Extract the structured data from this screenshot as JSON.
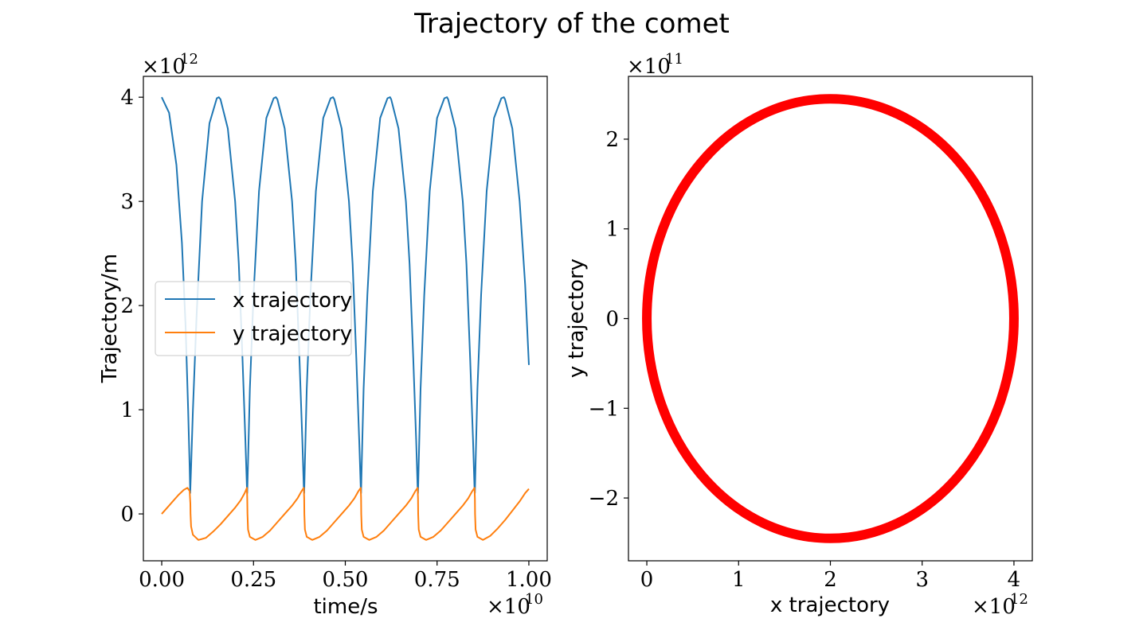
{
  "figure": {
    "title": "Trajectory of the comet"
  },
  "chart_data": [
    {
      "type": "line",
      "xlabel": "time/s",
      "ylabel": "Trajectory/m",
      "x_multiplier": "×10",
      "x_multiplier_exp": "10",
      "y_multiplier": "×10",
      "y_multiplier_exp": "12",
      "xlim": [
        -0.05,
        1.05
      ],
      "ylim": [
        -0.45,
        4.2
      ],
      "x_ticks": [
        0.0,
        0.25,
        0.5,
        0.75,
        1.0
      ],
      "x_tick_labels": [
        "0.00",
        "0.25",
        "0.50",
        "0.75",
        "1.00"
      ],
      "y_ticks": [
        0,
        1,
        2,
        3,
        4
      ],
      "y_tick_labels": [
        "0",
        "1",
        "2",
        "3",
        "4"
      ],
      "legend": "center-left",
      "grid": false,
      "series": [
        {
          "name": "x trajectory",
          "color": "#1f77b4",
          "x": [
            0.0,
            0.02,
            0.04,
            0.055,
            0.065,
            0.072,
            0.076,
            0.0775,
            0.08,
            0.085,
            0.095,
            0.11,
            0.13,
            0.15,
            0.1555,
            0.16,
            0.18,
            0.2,
            0.21,
            0.22,
            0.228,
            0.232,
            0.233,
            0.235,
            0.24,
            0.25,
            0.265,
            0.285,
            0.305,
            0.311,
            0.315,
            0.335,
            0.355,
            0.365,
            0.375,
            0.383,
            0.387,
            0.388,
            0.39,
            0.395,
            0.405,
            0.42,
            0.44,
            0.46,
            0.4665,
            0.47,
            0.49,
            0.51,
            0.52,
            0.53,
            0.538,
            0.542,
            0.543,
            0.545,
            0.55,
            0.56,
            0.575,
            0.595,
            0.615,
            0.622,
            0.625,
            0.645,
            0.665,
            0.675,
            0.685,
            0.693,
            0.697,
            0.698,
            0.7,
            0.705,
            0.715,
            0.73,
            0.75,
            0.77,
            0.777,
            0.78,
            0.8,
            0.82,
            0.83,
            0.84,
            0.848,
            0.852,
            0.853,
            0.855,
            0.86,
            0.87,
            0.885,
            0.905,
            0.925,
            0.932,
            0.935,
            0.955,
            0.975,
            0.99,
            1.0
          ],
          "y": [
            4.0,
            3.85,
            3.35,
            2.6,
            1.8,
            1.0,
            0.45,
            0.2,
            0.45,
            1.0,
            1.9,
            3.0,
            3.75,
            3.99,
            4.0,
            3.98,
            3.7,
            3.0,
            2.4,
            1.5,
            0.7,
            0.25,
            0.2,
            0.5,
            1.2,
            2.1,
            3.1,
            3.8,
            3.99,
            4.0,
            3.98,
            3.7,
            3.0,
            2.4,
            1.5,
            0.7,
            0.25,
            0.2,
            0.5,
            1.2,
            2.1,
            3.1,
            3.8,
            3.99,
            4.0,
            3.98,
            3.7,
            3.0,
            2.4,
            1.5,
            0.7,
            0.25,
            0.2,
            0.5,
            1.2,
            2.1,
            3.1,
            3.8,
            3.99,
            4.0,
            3.98,
            3.7,
            3.0,
            2.4,
            1.5,
            0.7,
            0.25,
            0.2,
            0.5,
            1.2,
            2.1,
            3.1,
            3.8,
            3.99,
            4.0,
            3.98,
            3.7,
            3.0,
            2.4,
            1.5,
            0.7,
            0.25,
            0.2,
            0.5,
            1.2,
            2.1,
            3.1,
            3.8,
            3.99,
            4.0,
            3.98,
            3.7,
            3.0,
            2.2,
            1.43
          ]
        },
        {
          "name": "y trajectory",
          "color": "#ff7f0e",
          "x": [
            0.0,
            0.015,
            0.03,
            0.045,
            0.06,
            0.07,
            0.076,
            0.078,
            0.0785,
            0.08,
            0.085,
            0.1,
            0.12,
            0.14,
            0.16,
            0.18,
            0.2,
            0.215,
            0.226,
            0.232,
            0.233,
            0.2335,
            0.235,
            0.24,
            0.255,
            0.275,
            0.295,
            0.315,
            0.335,
            0.355,
            0.37,
            0.381,
            0.387,
            0.388,
            0.3885,
            0.39,
            0.395,
            0.41,
            0.43,
            0.45,
            0.47,
            0.49,
            0.51,
            0.525,
            0.536,
            0.542,
            0.543,
            0.5435,
            0.545,
            0.55,
            0.565,
            0.585,
            0.605,
            0.625,
            0.645,
            0.665,
            0.68,
            0.691,
            0.697,
            0.698,
            0.6985,
            0.7,
            0.705,
            0.72,
            0.74,
            0.76,
            0.78,
            0.8,
            0.82,
            0.835,
            0.846,
            0.852,
            0.853,
            0.8535,
            0.855,
            0.86,
            0.875,
            0.895,
            0.915,
            0.935,
            0.955,
            0.975,
            0.99,
            1.0
          ],
          "y": [
            0.0,
            0.06,
            0.12,
            0.18,
            0.23,
            0.25,
            0.22,
            0.1,
            0.0,
            -0.12,
            -0.2,
            -0.25,
            -0.23,
            -0.17,
            -0.1,
            -0.02,
            0.06,
            0.13,
            0.2,
            0.25,
            0.15,
            0.0,
            -0.15,
            -0.22,
            -0.25,
            -0.22,
            -0.16,
            -0.08,
            0.0,
            0.08,
            0.15,
            0.22,
            0.25,
            0.15,
            0.0,
            -0.15,
            -0.22,
            -0.25,
            -0.22,
            -0.16,
            -0.08,
            0.0,
            0.08,
            0.15,
            0.22,
            0.25,
            0.15,
            0.0,
            -0.15,
            -0.22,
            -0.25,
            -0.22,
            -0.16,
            -0.08,
            0.0,
            0.08,
            0.15,
            0.22,
            0.25,
            0.15,
            0.0,
            -0.15,
            -0.22,
            -0.25,
            -0.22,
            -0.16,
            -0.08,
            0.0,
            0.08,
            0.15,
            0.22,
            0.25,
            0.15,
            0.0,
            -0.15,
            -0.22,
            -0.25,
            -0.21,
            -0.14,
            -0.06,
            0.03,
            0.12,
            0.2,
            0.24
          ]
        }
      ]
    },
    {
      "type": "scatter",
      "xlabel": "x trajectory",
      "ylabel": "y trajectory",
      "x_multiplier": "×10",
      "x_multiplier_exp": "12",
      "y_multiplier": "×10",
      "y_multiplier_exp": "11",
      "xlim": [
        -0.2,
        4.2
      ],
      "ylim": [
        -2.7,
        2.7
      ],
      "x_ticks": [
        0,
        1,
        2,
        3,
        4
      ],
      "x_tick_labels": [
        "0",
        "1",
        "2",
        "3",
        "4"
      ],
      "y_ticks": [
        -2,
        -1,
        0,
        1,
        2
      ],
      "y_tick_labels": [
        "−2",
        "−1",
        "0",
        "1",
        "2"
      ],
      "grid": false,
      "series": [
        {
          "color": "#ff0000",
          "shape": "ellipse",
          "center": [
            2.0,
            0.0
          ],
          "semi_axis_x": 2.0,
          "semi_axis_y": 2.45
        }
      ]
    }
  ]
}
